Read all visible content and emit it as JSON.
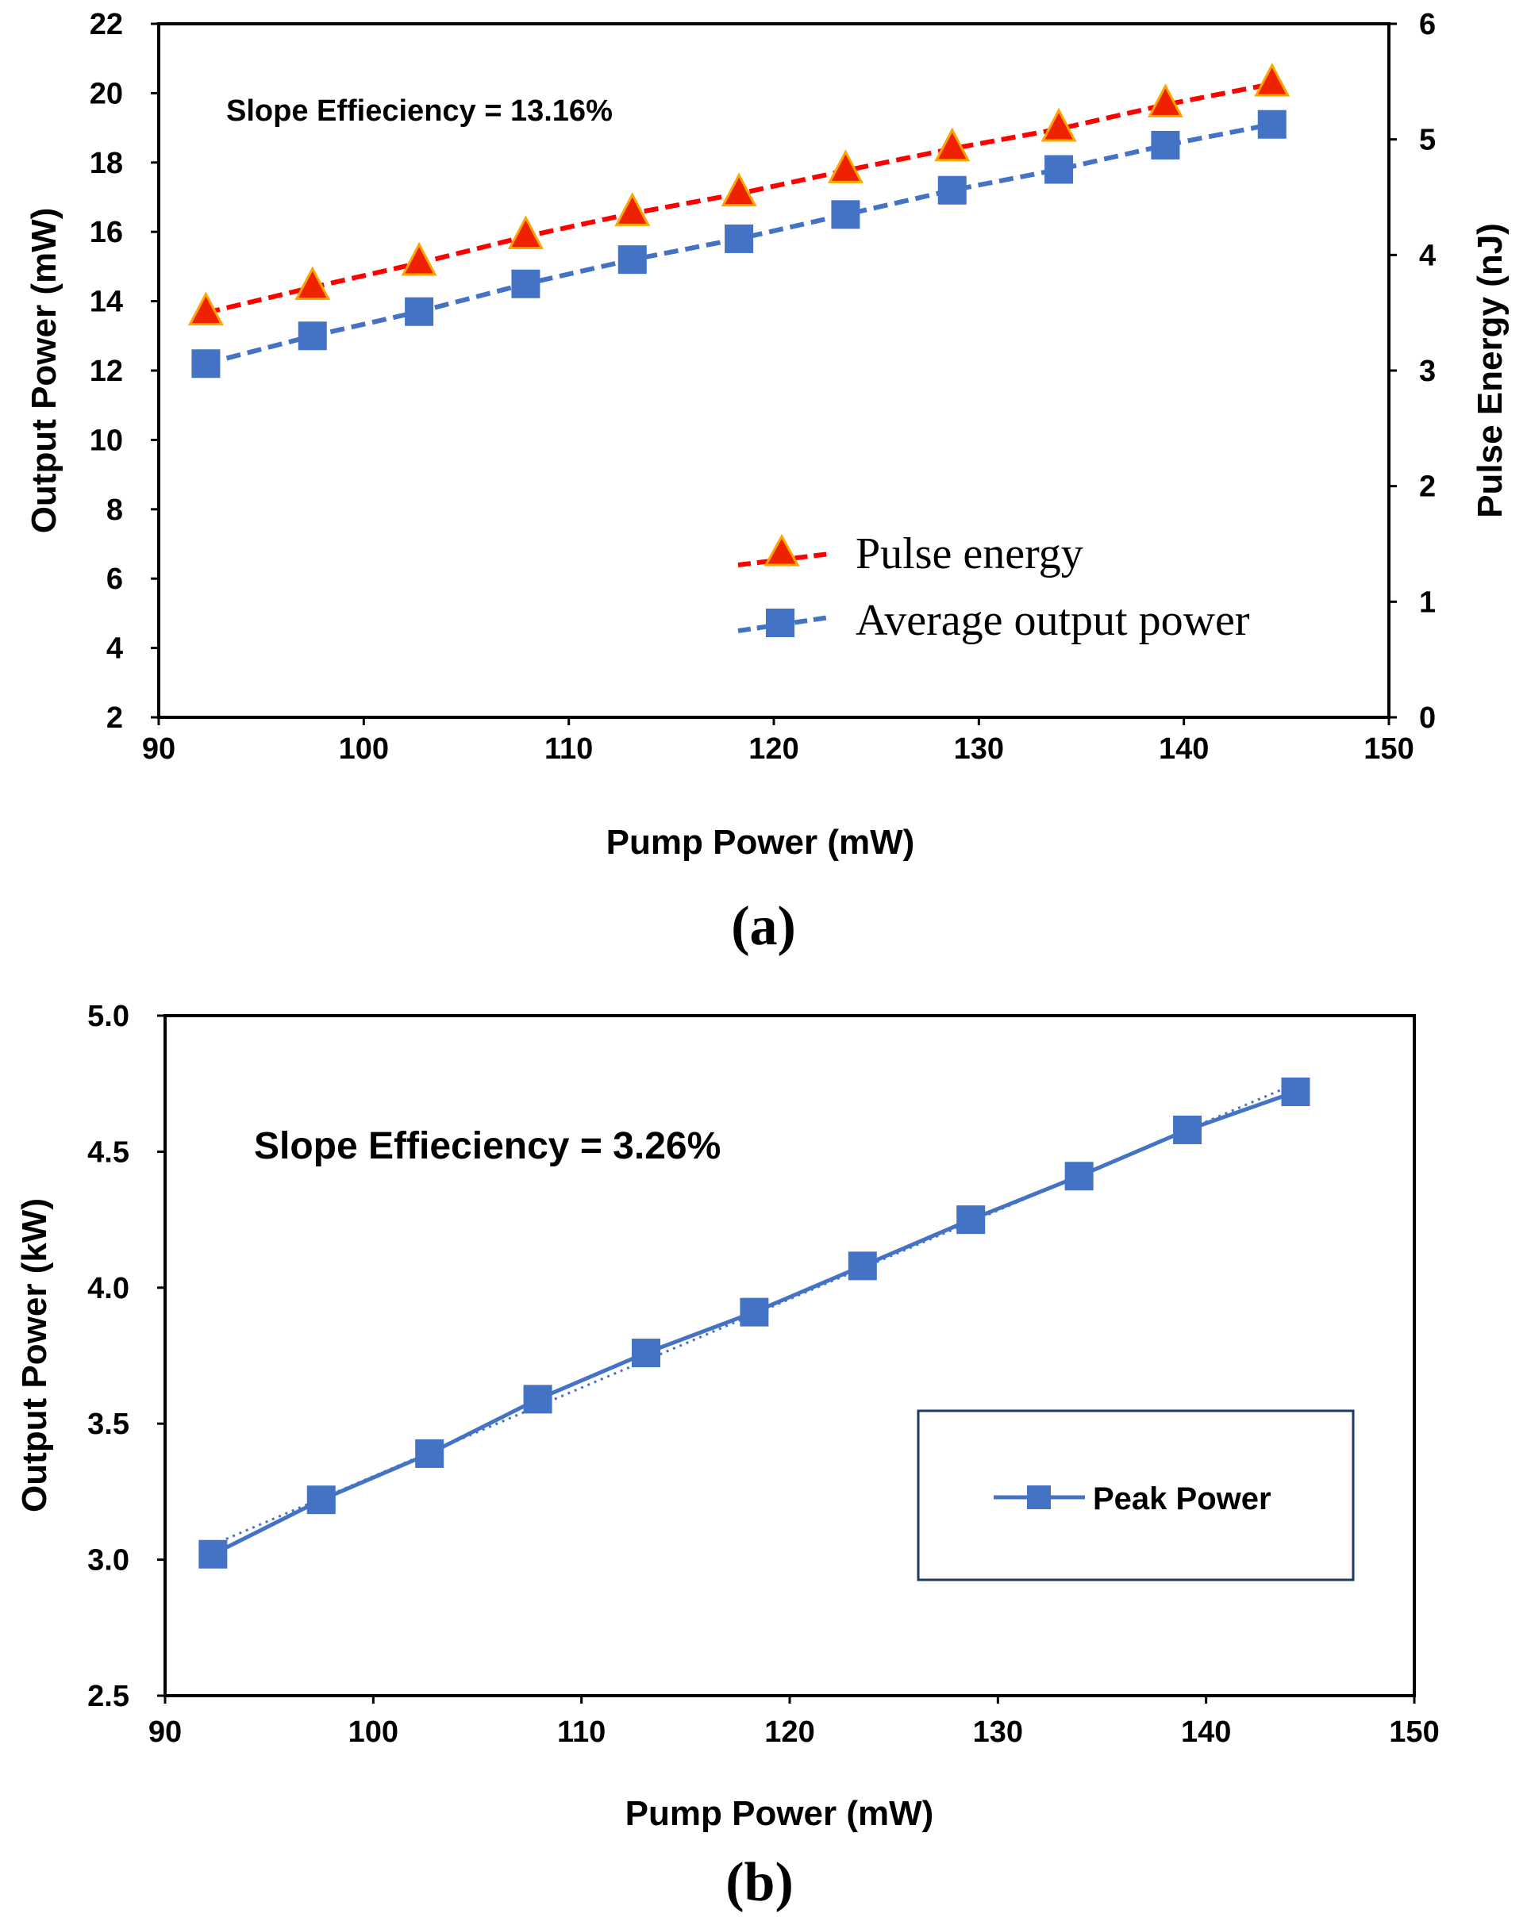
{
  "chart_data": [
    {
      "type": "line",
      "panel_label": "(a)",
      "annotation": "Slope Effieciency = 13.16%",
      "xlabel": "Pump Power (mW)",
      "ylabel": "Output Power (mW)",
      "y2label": "Pulse Energy (nJ)",
      "xlim": [
        90,
        150
      ],
      "ylim": [
        2,
        22
      ],
      "y2lim": [
        0,
        6
      ],
      "xticks": [
        "90",
        "100",
        "110",
        "120",
        "130",
        "140",
        "150"
      ],
      "yticks": [
        "2",
        "4",
        "6",
        "8",
        "10",
        "12",
        "14",
        "16",
        "18",
        "20",
        "22"
      ],
      "y2ticks": [
        "0",
        "1",
        "2",
        "3",
        "4",
        "5",
        "6"
      ],
      "grid": false,
      "legend_position": "bottom-right",
      "x": [
        92.3,
        97.5,
        102.7,
        107.9,
        113.1,
        118.3,
        123.5,
        128.7,
        133.9,
        139.1,
        144.3
      ],
      "series": [
        {
          "name": "Pulse energy",
          "axis": "right",
          "marker": "triangle",
          "color": "#ff0000",
          "fill": "#ee2200",
          "values": [
            3.5,
            3.72,
            3.93,
            4.16,
            4.36,
            4.53,
            4.73,
            4.92,
            5.09,
            5.3,
            5.48
          ]
        },
        {
          "name": "Average output power",
          "axis": "left",
          "marker": "square",
          "color": "#4472c4",
          "fill": "#4472c4",
          "values": [
            12.2,
            13.0,
            13.7,
            14.5,
            15.2,
            15.8,
            16.5,
            17.2,
            17.8,
            18.5,
            19.1
          ]
        }
      ]
    },
    {
      "type": "line",
      "panel_label": "(b)",
      "annotation": "Slope Effieciency = 3.26%",
      "xlabel": "Pump Power (mW)",
      "ylabel": "Output Power (kW)",
      "xlim": [
        90,
        150
      ],
      "ylim": [
        2.5,
        5.0
      ],
      "xticks": [
        "90",
        "100",
        "110",
        "120",
        "130",
        "140",
        "150"
      ],
      "yticks": [
        "2.5",
        "3.0",
        "3.5",
        "4.0",
        "4.5",
        "5.0"
      ],
      "grid": false,
      "legend_position": "lower-right",
      "x": [
        92.3,
        97.5,
        102.7,
        107.9,
        113.1,
        118.3,
        123.5,
        128.7,
        133.9,
        139.1,
        144.3
      ],
      "series": [
        {
          "name": "Peak Power",
          "marker": "square",
          "color": "#4472c4",
          "values": [
            3.02,
            3.22,
            3.39,
            3.59,
            3.76,
            3.91,
            4.08,
            4.25,
            4.41,
            4.58,
            4.72
          ]
        }
      ]
    }
  ]
}
